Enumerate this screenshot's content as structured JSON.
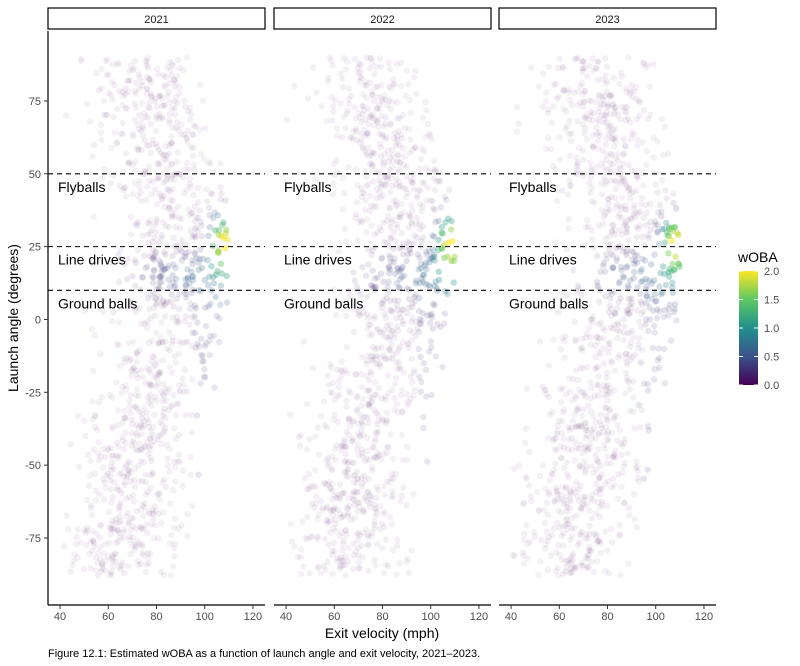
{
  "chart_data": {
    "type": "scatter",
    "facets": [
      "2021",
      "2022",
      "2023"
    ],
    "xlabel": "Exit velocity (mph)",
    "ylabel": "Launch angle (degrees)",
    "xlim": [
      35,
      125
    ],
    "ylim": [
      -98,
      99
    ],
    "x_ticks": [
      40,
      60,
      80,
      100,
      120
    ],
    "y_ticks": [
      -75,
      -50,
      -25,
      0,
      25,
      50,
      75
    ],
    "reference_lines": [
      {
        "y": 50,
        "style": "dashed",
        "label": "Flyballs"
      },
      {
        "y": 25,
        "style": "dashed",
        "label": "Line drives"
      },
      {
        "y": 10,
        "style": "dashed",
        "label": "Ground balls"
      }
    ],
    "color_scale": {
      "title": "wOBA",
      "palette": "viridis",
      "range": [
        0,
        2
      ],
      "ticks": [
        "0.0",
        "0.5",
        "1.0",
        "1.5",
        "2.0"
      ],
      "colors": [
        "#440154",
        "#3b528b",
        "#21908c",
        "#5dc863",
        "#fde725"
      ]
    },
    "point_alpha": 0.06,
    "caption": "Figure 12.1: Estimated wOBA as a function of launch angle and exit velocity, 2021–2023.",
    "grid": false,
    "legend_position": "right"
  }
}
